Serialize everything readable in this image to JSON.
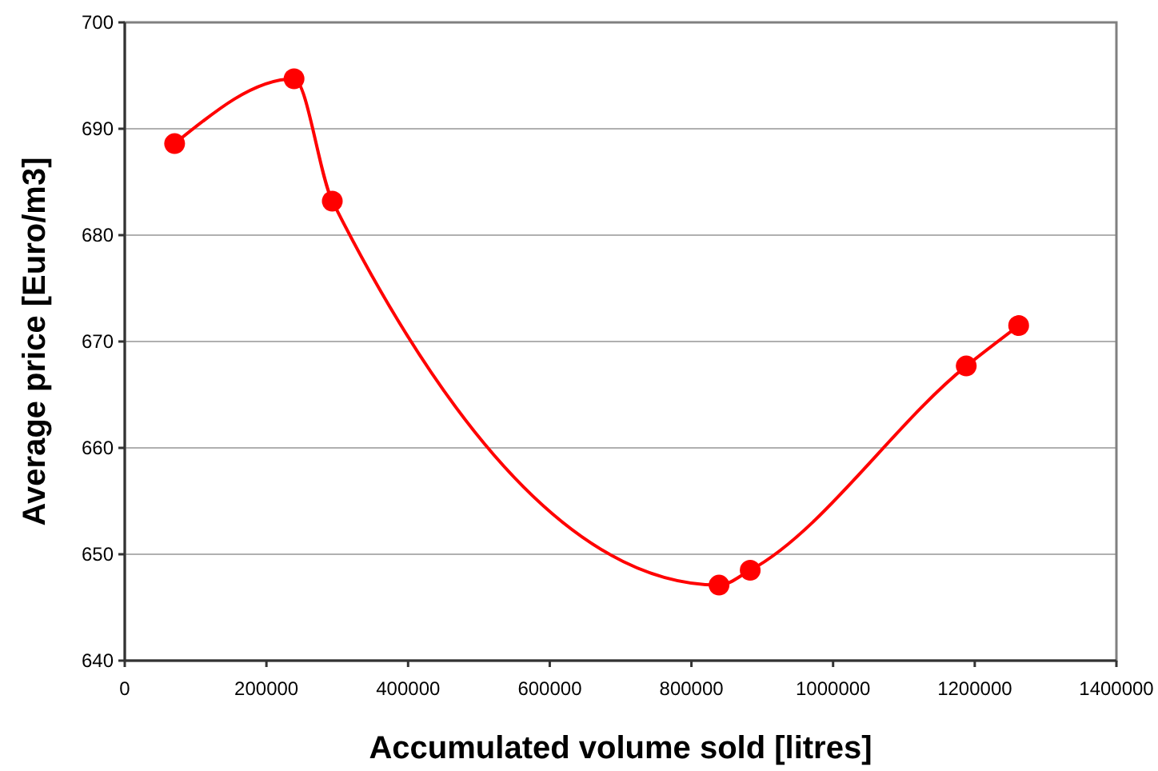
{
  "chart_data": {
    "type": "line",
    "xlabel": "Accumulated volume sold [litres]",
    "ylabel": "Average price [Euro/m3]",
    "x": [
      70400,
      239000,
      293000,
      839000,
      883000,
      1188000,
      1262000
    ],
    "series": [
      {
        "color": "#ff0000",
        "values": [
          688.6,
          694.7,
          683.2,
          647.1,
          648.5,
          667.7,
          671.5
        ]
      }
    ],
    "xlim": [
      0,
      1400000
    ],
    "xticks": [
      0,
      200000,
      400000,
      600000,
      800000,
      1000000,
      1200000,
      1400000
    ],
    "ylim": [
      640,
      700
    ],
    "yticks": [
      640,
      650,
      660,
      670,
      680,
      690,
      700
    ],
    "grid": "y",
    "marker": "circle",
    "line_style": "solid"
  }
}
